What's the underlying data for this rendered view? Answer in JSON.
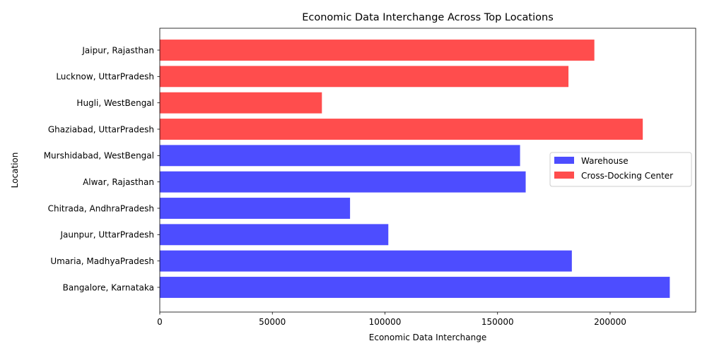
{
  "chart_data": {
    "type": "bar",
    "orientation": "horizontal",
    "title": "Economic Data Interchange Across Top Locations",
    "xlabel": "Economic Data Interchange",
    "ylabel": "Location",
    "xlim": [
      0,
      238000
    ],
    "xticks": [
      0,
      50000,
      100000,
      150000,
      200000
    ],
    "grid": false,
    "legend_position": "center-right",
    "categories": [
      "Bangalore, Karnataka",
      "Umaria, MadhyaPradesh",
      "Jaunpur, UttarPradesh",
      "Chitrada, AndhraPradesh",
      "Alwar, Rajasthan",
      "Murshidabad, WestBengal",
      "Ghaziabad, UttarPradesh",
      "Hugli, WestBengal",
      "Lucknow, UttarPradesh",
      "Jaipur, Rajasthan"
    ],
    "values": [
      226500,
      183000,
      101500,
      84500,
      162500,
      160000,
      214500,
      72000,
      181500,
      193000
    ],
    "bar_series": [
      0,
      0,
      0,
      0,
      0,
      0,
      1,
      1,
      1,
      1
    ],
    "series": [
      {
        "name": "Warehouse",
        "color": "#4d4dff"
      },
      {
        "name": "Cross-Docking Center",
        "color": "#ff4d4d"
      }
    ]
  }
}
